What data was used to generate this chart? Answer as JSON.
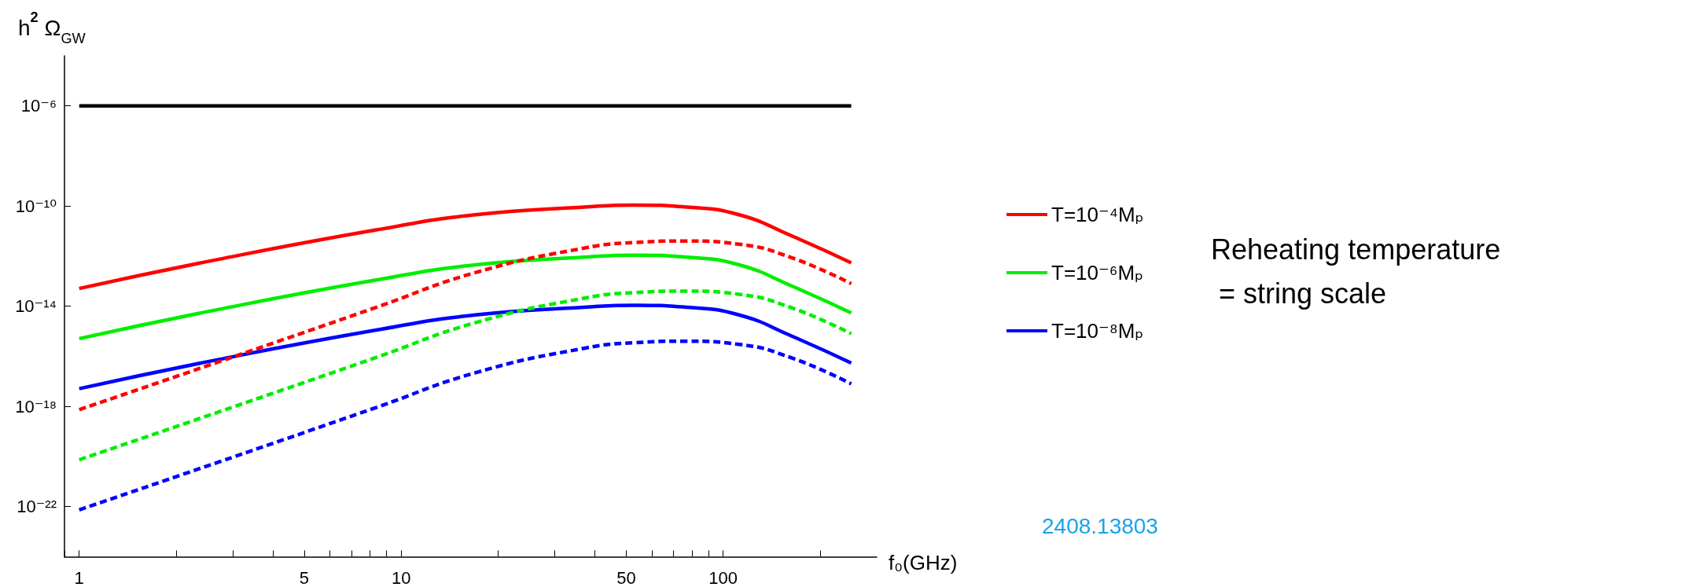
{
  "chart_data": {
    "type": "line",
    "ylabel": "h$^{2}$ Ω$_{GW}$",
    "xlabel": "f₀(GHz)",
    "log": "xy",
    "legend": "right",
    "grid": false,
    "marker": "none",
    "xlim": [
      0.9,
      300
    ],
    "xticks": [
      {
        "value": 0.9,
        "label": null
      },
      1,
      {
        "value": 2,
        "label": null
      },
      {
        "value": 3,
        "label": null
      },
      {
        "value": 4,
        "label": null
      },
      5,
      {
        "value": 6,
        "label": null
      },
      {
        "value": 7,
        "label": null
      },
      {
        "value": 8,
        "label": null
      },
      {
        "value": 9,
        "label": null
      },
      10,
      {
        "value": 20,
        "label": null
      },
      {
        "value": 30,
        "label": null
      },
      {
        "value": 40,
        "label": null
      },
      50,
      {
        "value": 60,
        "label": null
      },
      {
        "value": 70,
        "label": null
      },
      {
        "value": 80,
        "label": null
      },
      {
        "value": 90,
        "label": null
      },
      100,
      {
        "value": 200,
        "label": null
      }
    ],
    "ylim": [
      1e-24,
      0.0001
    ],
    "yticks": [
      {
        "value": 1e-22,
        "label": "10⁻²²"
      },
      {
        "value": 1e-18,
        "label": "10⁻¹⁸"
      },
      {
        "value": 1e-14,
        "label": "10⁻¹⁴"
      },
      {
        "value": 1e-10,
        "label": "10⁻¹⁰"
      },
      {
        "value": 1e-06,
        "label": "10⁻⁶"
      }
    ],
    "series": [
      {
        "color": "#000000",
        "line_style": "solid",
        "x": [
          1,
          250
        ],
        "values": [
          1e-06,
          1e-06
        ]
      },
      {
        "name": "T=10⁻⁴Mₚ",
        "color": "#ff0000",
        "line_style": "solid",
        "x": [
          1,
          2.7,
          8.3,
          17,
          37,
          53,
          77,
          112,
          163,
          250
        ],
        "values": [
          5.1e-14,
          7.4e-13,
          1.1e-11,
          4.5e-11,
          9.1e-11,
          1.1e-10,
          9.1e-11,
          4.5e-11,
          6.5e-12,
          5.4e-13
        ]
      },
      {
        "name": "T=10⁻⁶Mₚ",
        "color": "#00ee00",
        "line_style": "solid",
        "x": [
          1,
          2.7,
          8.3,
          17,
          37,
          53,
          77,
          112,
          163,
          250
        ],
        "values": [
          5.1e-16,
          7.4e-15,
          1.1e-13,
          4.5e-13,
          9.1e-13,
          1.1e-12,
          9.1e-13,
          4.5e-13,
          6.5e-14,
          5.4e-15
        ]
      },
      {
        "name": "T=10⁻⁸Mₚ",
        "color": "#0000ff",
        "line_style": "solid",
        "x": [
          1,
          2.7,
          8.3,
          17,
          37,
          53,
          77,
          112,
          163,
          250
        ],
        "values": [
          5.1e-18,
          7.4e-17,
          1.1e-15,
          4.5e-15,
          9.1e-15,
          1.1e-14,
          9.1e-15,
          4.5e-15,
          6.5e-16,
          5.4e-17
        ]
      },
      {
        "color": "#ff0000",
        "line_style": "dashed",
        "x": [
          1,
          2.7,
          8.3,
          17,
          37,
          53,
          77,
          112,
          163,
          250
        ],
        "values": [
          7.4e-19,
          5.9e-17,
          8.7e-15,
          2.2e-13,
          2.1e-12,
          3.5e-12,
          4e-12,
          3e-12,
          8.7e-13,
          7.9e-14
        ]
      },
      {
        "color": "#00ee00",
        "line_style": "dashed",
        "x": [
          1,
          2.7,
          8.3,
          17,
          37,
          53,
          77,
          112,
          163,
          250
        ],
        "values": [
          7.4e-21,
          5.9e-19,
          8.7e-17,
          2.2e-15,
          2.1e-14,
          3.5e-14,
          4e-14,
          3e-14,
          8.7e-15,
          7.9e-16
        ]
      },
      {
        "color": "#0000ff",
        "line_style": "dashed",
        "x": [
          1,
          2.7,
          8.3,
          17,
          37,
          53,
          77,
          112,
          163,
          250
        ],
        "values": [
          7.4e-23,
          5.9e-21,
          8.7e-19,
          2.2e-17,
          2.1e-16,
          3.5e-16,
          4e-16,
          3e-16,
          8.7e-17,
          7.9e-18
        ]
      }
    ],
    "annotations": [
      "Reheating temperature = string scale",
      "2408.13803"
    ]
  }
}
